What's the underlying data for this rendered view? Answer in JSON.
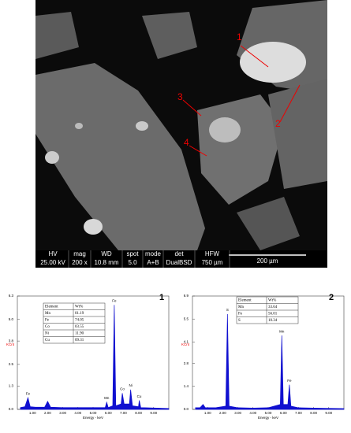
{
  "sem_image": {
    "labels": [
      "1",
      "2",
      "3",
      "4"
    ],
    "info_bar": [
      {
        "key": "HV",
        "value": "25.00 kV"
      },
      {
        "key": "mag",
        "value": "200 x"
      },
      {
        "key": "WD",
        "value": "10.8 mm"
      },
      {
        "key": "spot",
        "value": "5.0"
      },
      {
        "key": "mode",
        "value": "A+B"
      },
      {
        "key": "det",
        "value": "DualBSD"
      },
      {
        "key": "HFW",
        "value": "750 µm"
      }
    ],
    "scale_bar": "200 µm"
  },
  "chart_data": [
    {
      "type": "line",
      "title": "1",
      "x_label": "Energy - keV",
      "y_label": "KCnt",
      "color": "#1010d0",
      "xlim": [
        0,
        10
      ],
      "ylim": [
        0,
        6.3
      ],
      "xticks": [
        {
          "value": 1,
          "label": "1.00"
        },
        {
          "value": 2,
          "label": "2.00"
        },
        {
          "value": 3,
          "label": "3.00"
        },
        {
          "value": 4,
          "label": "4.00"
        },
        {
          "value": 5,
          "label": "5.00"
        },
        {
          "value": 6,
          "label": "6.00"
        },
        {
          "value": 7,
          "label": "7.00"
        },
        {
          "value": 8,
          "label": "8.00"
        },
        {
          "value": 9,
          "label": "9.00"
        }
      ],
      "yticks": [
        {
          "value": 0,
          "label": "0.0"
        },
        1.3,
        2.5,
        3.8,
        {
          "value": 5,
          "label": "5.0"
        },
        6.3
      ],
      "x": [
        0.2,
        0.5,
        0.7,
        0.85,
        1.2,
        1.8,
        2.0,
        2.2,
        3.0,
        4.0,
        5.0,
        5.8,
        5.9,
        6.0,
        6.3,
        6.4,
        6.5,
        6.85,
        6.93,
        7.05,
        7.4,
        7.48,
        7.6,
        8.0,
        8.05,
        8.15,
        9.0,
        10.0
      ],
      "values": [
        0.1,
        0.15,
        0.65,
        0.15,
        0.12,
        0.12,
        0.45,
        0.12,
        0.1,
        0.1,
        0.1,
        0.1,
        0.4,
        0.1,
        0.2,
        5.8,
        0.2,
        0.3,
        0.9,
        0.3,
        0.3,
        1.1,
        0.2,
        0.15,
        0.5,
        0.1,
        0.08,
        0.05
      ],
      "peak_labels": [
        {
          "label": "Fe",
          "x": 0.7
        },
        {
          "label": "Mn",
          "x": 5.9
        },
        {
          "label": "Fe",
          "x": 6.4
        },
        {
          "label": "Co",
          "x": 6.93
        },
        {
          "label": "Ni",
          "x": 7.48
        },
        {
          "label": "Cu",
          "x": 8.05
        }
      ],
      "table": {
        "header": [
          "Element",
          "Wt%"
        ],
        "rows": [
          [
            "Mn",
            "01.19"
          ],
          [
            "Fe",
            "74.05"
          ],
          [
            "Co",
            "03.55"
          ],
          [
            "Ni",
            "11.90"
          ],
          [
            "Cu",
            "09.31"
          ]
        ]
      }
    },
    {
      "type": "line",
      "title": "2",
      "x_label": "Energy - keV",
      "y_label": "KCnt",
      "color": "#1010d0",
      "xlim": [
        0,
        10
      ],
      "ylim": [
        0,
        6.9
      ],
      "xticks": [
        {
          "value": 1,
          "label": "1.00"
        },
        {
          "value": 2,
          "label": "2.00"
        },
        {
          "value": 3,
          "label": "3.00"
        },
        {
          "value": 4,
          "label": "4.00"
        },
        {
          "value": 5,
          "label": "5.00"
        },
        {
          "value": 6,
          "label": "6.00"
        },
        {
          "value": 7,
          "label": "7.00"
        },
        {
          "value": 8,
          "label": "8.00"
        },
        {
          "value": 9,
          "label": "9.00"
        }
      ],
      "yticks": [
        {
          "value": 0,
          "label": "0.0"
        },
        1.4,
        2.8,
        4.1,
        5.5,
        6.9
      ],
      "x": [
        0.2,
        0.5,
        0.7,
        0.85,
        1.5,
        2.2,
        2.31,
        2.42,
        3.0,
        4.0,
        5.0,
        5.8,
        5.9,
        6.0,
        6.3,
        6.4,
        6.5,
        7.0,
        8.0,
        10.0
      ],
      "values": [
        0.1,
        0.1,
        0.3,
        0.1,
        0.1,
        0.2,
        5.8,
        0.2,
        0.1,
        0.08,
        0.1,
        0.3,
        4.5,
        0.3,
        0.3,
        1.5,
        0.2,
        0.1,
        0.08,
        0.05
      ],
      "peak_labels": [
        {
          "label": "S",
          "x": 2.31
        },
        {
          "label": "Mn",
          "x": 5.9
        },
        {
          "label": "Fe",
          "x": 6.4
        }
      ],
      "table": {
        "header": [
          "Element",
          "Wt%"
        ],
        "rows": [
          [
            "Mn",
            "33.64"
          ],
          [
            "Fe",
            "56.01"
          ],
          [
            "S",
            "10.34"
          ]
        ]
      }
    }
  ]
}
